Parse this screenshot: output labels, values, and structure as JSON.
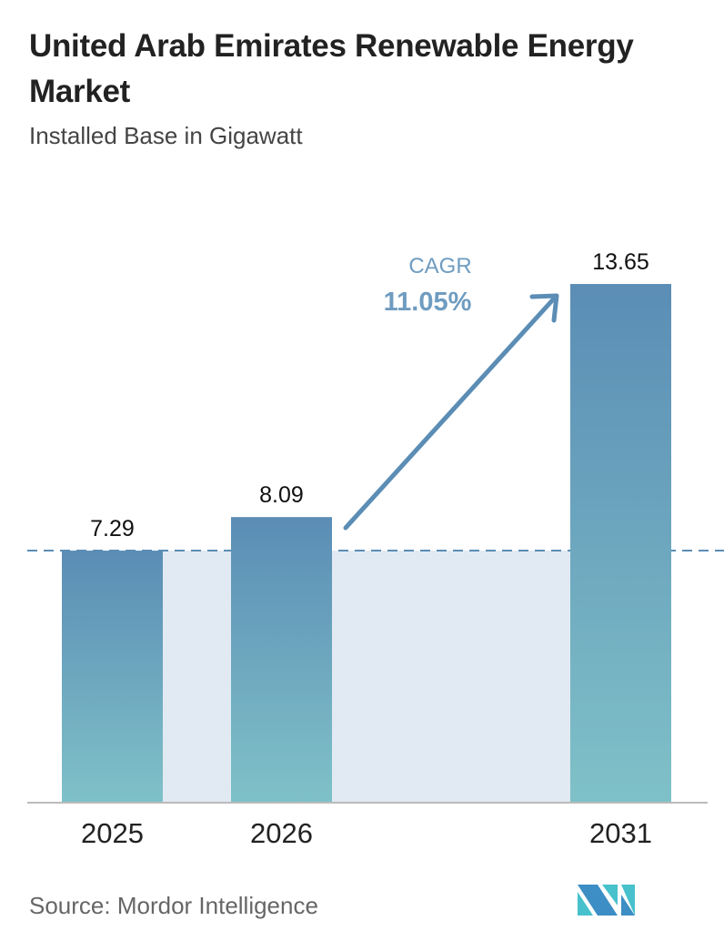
{
  "title": "United Arab Emirates Renewable Energy Market",
  "subtitle": "Installed Base in Gigawatt",
  "source": "Source:  Mordor Intelligence",
  "logo_text": "MI",
  "colors": {
    "bar_top": "#5b8db5",
    "bar_bottom": "#7fc1c8",
    "band": "#e1eaf2",
    "arrow": "#5b8db5",
    "dashed_line": "#5b8db5"
  },
  "chart_data": {
    "type": "bar",
    "categories": [
      "2025",
      "2026",
      "2031"
    ],
    "values": [
      7.29,
      8.09,
      13.65
    ],
    "value_labels": [
      "7.29",
      "8.09",
      "13.65"
    ],
    "title": "United Arab Emirates Renewable Energy Market",
    "subtitle": "Installed Base in Gigawatt",
    "annotation": {
      "label": "CAGR",
      "value": "11.05%"
    },
    "grid": false
  }
}
